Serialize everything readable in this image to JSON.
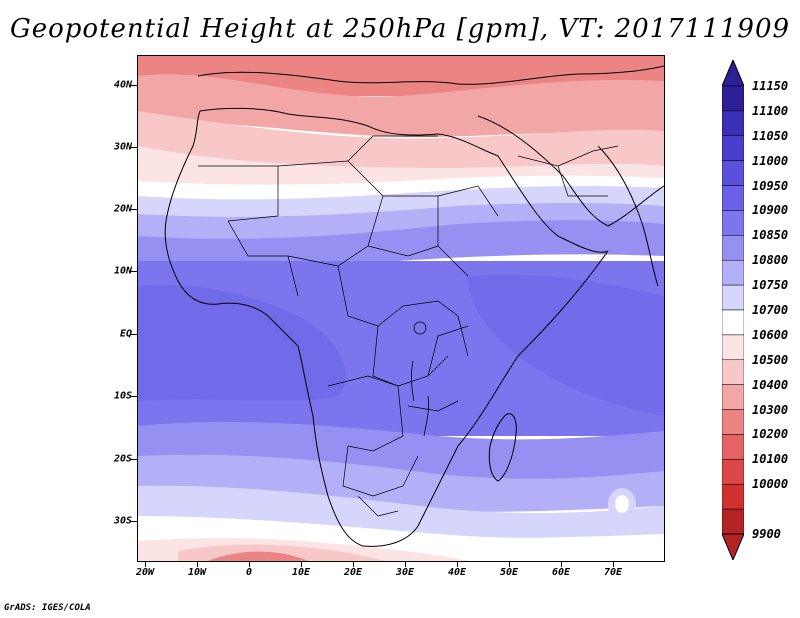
{
  "title": "Geopotential Height at 250hPa [gpm], VT: 2017111909",
  "credit": "GrADS: IGES/COLA",
  "y_ticks": [
    "40N",
    "30N",
    "20N",
    "10N",
    "EQ",
    "10S",
    "20S",
    "30S"
  ],
  "x_ticks": [
    "20W",
    "10W",
    "0",
    "10E",
    "20E",
    "30E",
    "40E",
    "50E",
    "60E",
    "70E"
  ],
  "colorbar": {
    "labels": [
      "11150",
      "11100",
      "11050",
      "11000",
      "10950",
      "10900",
      "10850",
      "10800",
      "10750",
      "10700",
      "10600",
      "10500",
      "10400",
      "10300",
      "10200",
      "10100",
      "10000",
      "9900"
    ],
    "colors": [
      "#2d1f96",
      "#3b2fb8",
      "#4a3fcc",
      "#5a50dc",
      "#6a62e6",
      "#7c75ee",
      "#9590f2",
      "#b3b0f7",
      "#d6d5fb",
      "#ffffff",
      "#fce4e4",
      "#f8c8c8",
      "#f3a6a6",
      "#ec8484",
      "#e46363",
      "#dc4747",
      "#cf3030",
      "#b52424"
    ]
  },
  "map": {
    "region": "Africa",
    "field_colors": {
      "deep_low": "#6a62e6",
      "low": "#7c75ee",
      "mid_low": "#9590f2",
      "light_blue": "#b3b0f7",
      "pale_blue": "#d6d5fb",
      "white": "#ffffff",
      "pale_red": "#fce4e4",
      "light_red": "#f8c8c8",
      "red": "#ec8484",
      "dark_red": "#e46363"
    }
  }
}
